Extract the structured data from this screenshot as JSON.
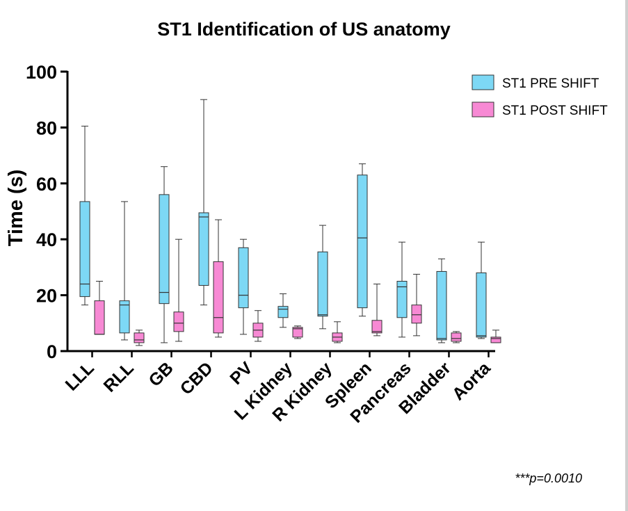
{
  "chart_data": {
    "type": "boxplot",
    "title": "ST1 Identification of US anatomy",
    "xlabel": "",
    "ylabel": "Time (s)",
    "ylim": [
      0,
      100
    ],
    "yticks": [
      0,
      20,
      40,
      60,
      80,
      100
    ],
    "categories": [
      "LLL",
      "RLL",
      "GB",
      "CBD",
      "PV",
      "L Kidney",
      "R Kidney",
      "Spleen",
      "Pancreas",
      "Bladder",
      "Aorta"
    ],
    "legend_position": "top-right",
    "grid": false,
    "series": [
      {
        "name": "ST1 PRE SHIFT",
        "color": "#7dd8f5",
        "boxes": [
          {
            "min": 16.5,
            "q1": 19.5,
            "median": 24,
            "q3": 53.5,
            "max": 80.5
          },
          {
            "min": 4,
            "q1": 6.5,
            "median": 16.5,
            "q3": 18,
            "max": 53.5
          },
          {
            "min": 3,
            "q1": 17,
            "median": 21,
            "q3": 56,
            "max": 66
          },
          {
            "min": 16.5,
            "q1": 23.5,
            "median": 48,
            "q3": 49.5,
            "max": 90
          },
          {
            "min": 6,
            "q1": 15.5,
            "median": 20,
            "q3": 37,
            "max": 40
          },
          {
            "min": 8.5,
            "q1": 12,
            "median": 15,
            "q3": 16,
            "max": 20.5
          },
          {
            "min": 8,
            "q1": 12.5,
            "median": 13,
            "q3": 35.5,
            "max": 45
          },
          {
            "min": 12.5,
            "q1": 15.5,
            "median": 40.5,
            "q3": 63,
            "max": 67
          },
          {
            "min": 5,
            "q1": 12,
            "median": 23,
            "q3": 25,
            "max": 39
          },
          {
            "min": 3,
            "q1": 4,
            "median": 4.5,
            "q3": 28.5,
            "max": 33
          },
          {
            "min": 4.5,
            "q1": 5,
            "median": 5.5,
            "q3": 28,
            "max": 39
          }
        ]
      },
      {
        "name": "ST1 POST SHIFT",
        "color": "#f789d4",
        "boxes": [
          {
            "min": 6,
            "q1": 6,
            "median": 6,
            "q3": 18,
            "max": 25
          },
          {
            "min": 2,
            "q1": 3,
            "median": 4,
            "q3": 6.5,
            "max": 7.5
          },
          {
            "min": 3.5,
            "q1": 7,
            "median": 10,
            "q3": 14,
            "max": 40
          },
          {
            "min": 5,
            "q1": 6.5,
            "median": 12,
            "q3": 32,
            "max": 47
          },
          {
            "min": 3.5,
            "q1": 5,
            "median": 7.5,
            "q3": 10,
            "max": 14.5
          },
          {
            "min": 4.5,
            "q1": 5,
            "median": 8,
            "q3": 8.5,
            "max": 9
          },
          {
            "min": 3,
            "q1": 3.5,
            "median": 5,
            "q3": 6.5,
            "max": 10.5
          },
          {
            "min": 5.5,
            "q1": 6.5,
            "median": 7,
            "q3": 11,
            "max": 24
          },
          {
            "min": 5.5,
            "q1": 10,
            "median": 13,
            "q3": 16.5,
            "max": 27.5
          },
          {
            "min": 3,
            "q1": 3.5,
            "median": 4.5,
            "q3": 6.5,
            "max": 7
          },
          {
            "min": 3,
            "q1": 3,
            "median": 4.5,
            "q3": 5,
            "max": 7.5
          }
        ]
      }
    ],
    "annotations": [
      "***p=0.0010"
    ]
  }
}
